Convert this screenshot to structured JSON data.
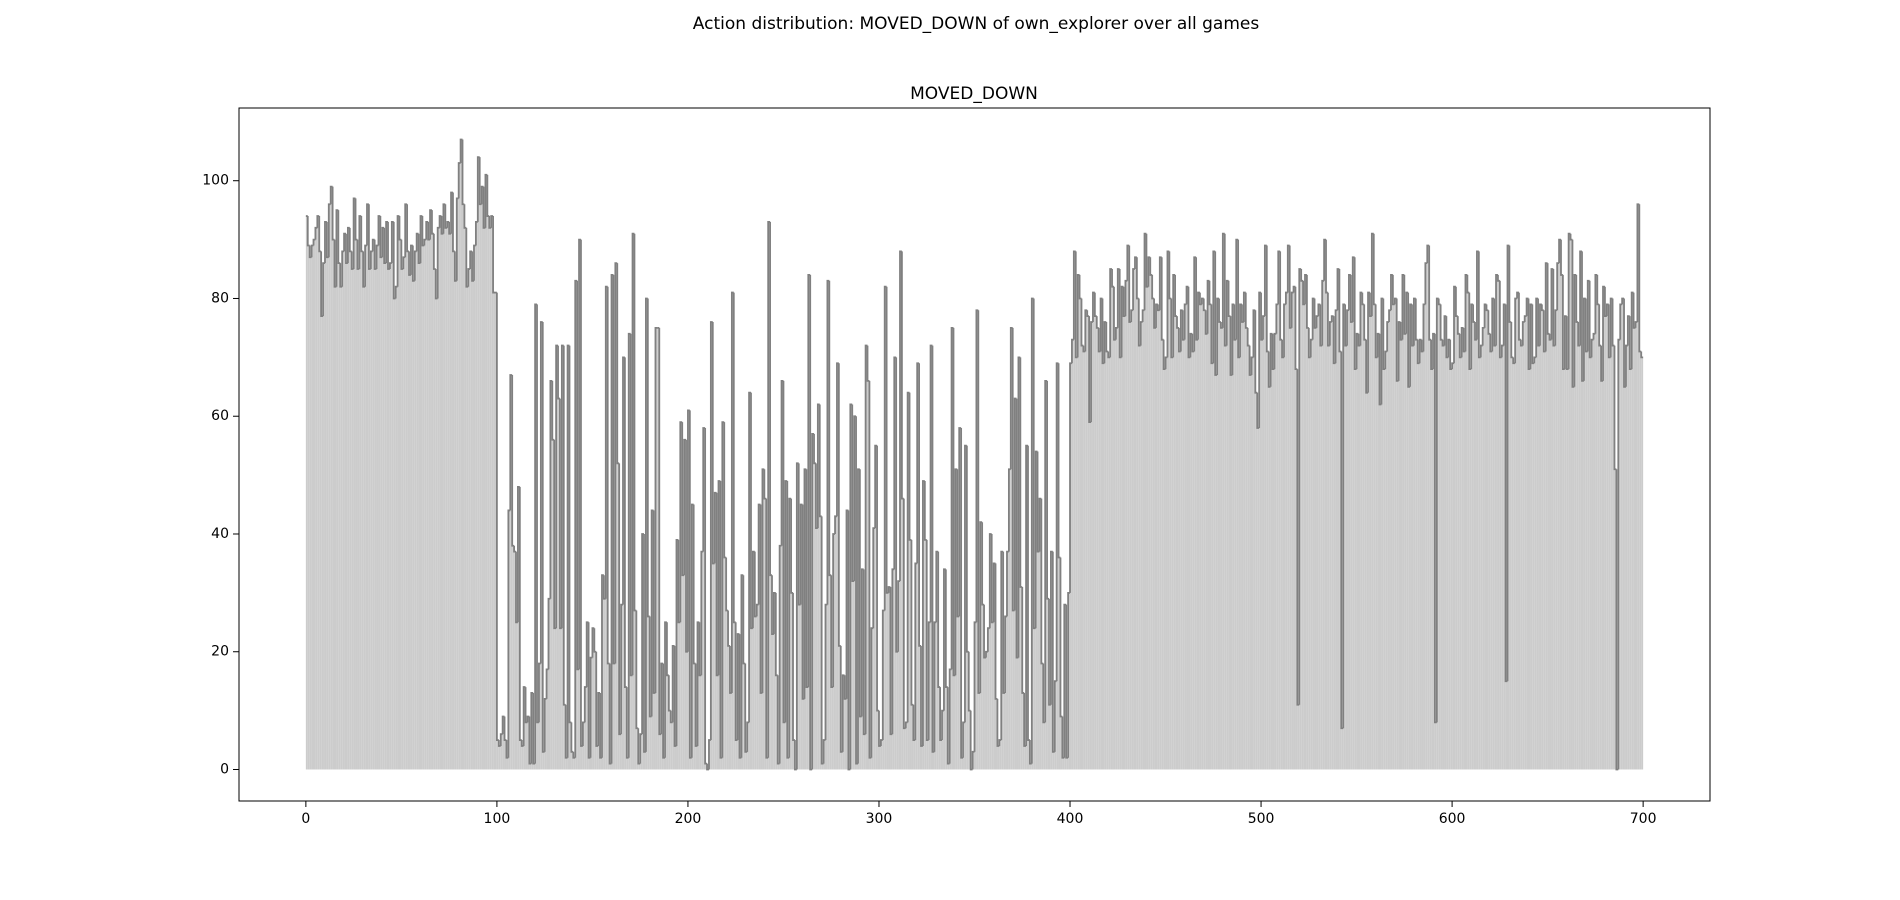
{
  "chart_data": {
    "type": "histogram",
    "title": "Action distribution: MOVED_DOWN of own_explorer over all games",
    "subtitle": "MOVED_DOWN",
    "color": "#cccccc",
    "edgecolor": "#808080",
    "xlim": [
      -35,
      735
    ],
    "ylim": [
      -5.35,
      112.35
    ],
    "xticks": [
      0,
      100,
      200,
      300,
      400,
      500,
      600,
      700
    ],
    "yticks": [
      0,
      20,
      40,
      60,
      80,
      100
    ],
    "bins": [
      0,
      1,
      2,
      3,
      4,
      5,
      6,
      7,
      8,
      9,
      10,
      11,
      12,
      13,
      14,
      15,
      16,
      17,
      18,
      19,
      20,
      21,
      22,
      23,
      24,
      25,
      26,
      27,
      28,
      29,
      30,
      31,
      32,
      33,
      34,
      35,
      36,
      37,
      38,
      39,
      40,
      41,
      42,
      43,
      44,
      45,
      46,
      47,
      48,
      49,
      50,
      51,
      52,
      53,
      54,
      55,
      56,
      57,
      58,
      59,
      60,
      61,
      62,
      63,
      64,
      65,
      66,
      67,
      68,
      69,
      70,
      71,
      72,
      73,
      74,
      75,
      76,
      77,
      78,
      79,
      80,
      81,
      82,
      83,
      84,
      85,
      86,
      87,
      88,
      89,
      90,
      91,
      92,
      93,
      94,
      95,
      96,
      97,
      98,
      99,
      100,
      101,
      102,
      103,
      104,
      105,
      106,
      107,
      108,
      109,
      110,
      111,
      112,
      113,
      114,
      115,
      116,
      117,
      118,
      119,
      120,
      121,
      122,
      123,
      124,
      125,
      126,
      127,
      128,
      129,
      130,
      131,
      132,
      133,
      134,
      135,
      136,
      137,
      138,
      139,
      140,
      141,
      142,
      143,
      144,
      145,
      146,
      147,
      148,
      149,
      150,
      151,
      152,
      153,
      154,
      155,
      156,
      157,
      158,
      159,
      160,
      161,
      162,
      163,
      164,
      165,
      166,
      167,
      168,
      169,
      170,
      171,
      172,
      173,
      174,
      175,
      176,
      177,
      178,
      179,
      180,
      181,
      182,
      183,
      184,
      185,
      186,
      187,
      188,
      189,
      190,
      191,
      192,
      193,
      194,
      195,
      196,
      197,
      198,
      199,
      200,
      201,
      202,
      203,
      204,
      205,
      206,
      207,
      208,
      209,
      210,
      211,
      212,
      213,
      214,
      215,
      216,
      217,
      218,
      219,
      220,
      221,
      222,
      223,
      224,
      225,
      226,
      227,
      228,
      229,
      230,
      231,
      232,
      233,
      234,
      235,
      236,
      237,
      238,
      239,
      240,
      241,
      242,
      243,
      244,
      245,
      246,
      247,
      248,
      249,
      250,
      251,
      252,
      253,
      254,
      255,
      256,
      257,
      258,
      259,
      260,
      261,
      262,
      263,
      264,
      265,
      266,
      267,
      268,
      269,
      270,
      271,
      272,
      273,
      274,
      275,
      276,
      277,
      278,
      279,
      280,
      281,
      282,
      283,
      284,
      285,
      286,
      287,
      288,
      289,
      290,
      291,
      292,
      293,
      294,
      295,
      296,
      297,
      298,
      299,
      300,
      301,
      302,
      303,
      304,
      305,
      306,
      307,
      308,
      309,
      310,
      311,
      312,
      313,
      314,
      315,
      316,
      317,
      318,
      319,
      320,
      321,
      322,
      323,
      324,
      325,
      326,
      327,
      328,
      329,
      330,
      331,
      332,
      333,
      334,
      335,
      336,
      337,
      338,
      339,
      340,
      341,
      342,
      343,
      344,
      345,
      346,
      347,
      348,
      349,
      350,
      351,
      352,
      353,
      354,
      355,
      356,
      357,
      358,
      359,
      360,
      361,
      362,
      363,
      364,
      365,
      366,
      367,
      368,
      369,
      370,
      371,
      372,
      373,
      374,
      375,
      376,
      377,
      378,
      379,
      380,
      381,
      382,
      383,
      384,
      385,
      386,
      387,
      388,
      389,
      390,
      391,
      392,
      393,
      394,
      395,
      396,
      397,
      398,
      399,
      400,
      401,
      402,
      403,
      404,
      405,
      406,
      407,
      408,
      409,
      410,
      411,
      412,
      413,
      414,
      415,
      416,
      417,
      418,
      419,
      420,
      421,
      422,
      423,
      424,
      425,
      426,
      427,
      428,
      429,
      430,
      431,
      432,
      433,
      434,
      435,
      436,
      437,
      438,
      439,
      440,
      441,
      442,
      443,
      444,
      445,
      446,
      447,
      448,
      449,
      450,
      451,
      452,
      453,
      454,
      455,
      456,
      457,
      458,
      459,
      460,
      461,
      462,
      463,
      464,
      465,
      466,
      467,
      468,
      469,
      470,
      471,
      472,
      473,
      474,
      475,
      476,
      477,
      478,
      479,
      480,
      481,
      482,
      483,
      484,
      485,
      486,
      487,
      488,
      489,
      490,
      491,
      492,
      493,
      494,
      495,
      496,
      497,
      498,
      499,
      500,
      501,
      502,
      503,
      504,
      505,
      506,
      507,
      508,
      509,
      510,
      511,
      512,
      513,
      514,
      515,
      516,
      517,
      518,
      519,
      520,
      521,
      522,
      523,
      524,
      525,
      526,
      527,
      528,
      529,
      530,
      531,
      532,
      533,
      534,
      535,
      536,
      537,
      538,
      539,
      540,
      541,
      542,
      543,
      544,
      545,
      546,
      547,
      548,
      549,
      550,
      551,
      552,
      553,
      554,
      555,
      556,
      557,
      558,
      559,
      560,
      561,
      562,
      563,
      564,
      565,
      566,
      567,
      568,
      569,
      570,
      571,
      572,
      573,
      574,
      575,
      576,
      577,
      578,
      579,
      580,
      581,
      582,
      583,
      584,
      585,
      586,
      587,
      588,
      589,
      590,
      591,
      592,
      593,
      594,
      595,
      596,
      597,
      598,
      599,
      600,
      601,
      602,
      603,
      604,
      605,
      606,
      607,
      608,
      609,
      610,
      611,
      612,
      613,
      614,
      615,
      616,
      617,
      618,
      619,
      620,
      621,
      622,
      623,
      624,
      625,
      626,
      627,
      628,
      629,
      630,
      631,
      632,
      633,
      634,
      635,
      636,
      637,
      638,
      639,
      640,
      641,
      642,
      643,
      644,
      645,
      646,
      647,
      648,
      649,
      650,
      651,
      652,
      653,
      654,
      655,
      656,
      657,
      658,
      659,
      660,
      661,
      662,
      663,
      664,
      665,
      666,
      667,
      668,
      669,
      670,
      671,
      672,
      673,
      674,
      675,
      676,
      677,
      678,
      679,
      680,
      681,
      682,
      683,
      684,
      685,
      686,
      687,
      688,
      689,
      690,
      691,
      692,
      693,
      694,
      695,
      696,
      697,
      698,
      699,
      700
    ],
    "values": [
      94,
      89,
      87,
      89,
      90,
      92,
      94,
      88,
      77,
      86,
      93,
      87,
      96,
      99,
      90,
      82,
      95,
      86,
      82,
      88,
      91,
      86,
      92,
      88,
      85,
      97,
      90,
      85,
      94,
      88,
      82,
      89,
      96,
      85,
      88,
      90,
      85,
      89,
      94,
      87,
      92,
      86,
      93,
      85,
      86,
      93,
      80,
      82,
      94,
      90,
      85,
      87,
      96,
      88,
      84,
      89,
      83,
      88,
      91,
      86,
      94,
      89,
      90,
      93,
      90,
      95,
      91,
      85,
      80,
      92,
      94,
      91,
      96,
      92,
      93,
      91,
      98,
      88,
      83,
      97,
      103,
      107,
      96,
      92,
      82,
      85,
      88,
      83,
      89,
      93,
      104,
      96,
      99,
      92,
      101,
      94,
      92,
      94,
      81,
      81,
      5,
      4,
      6,
      9,
      5,
      2,
      44,
      67,
      38,
      37,
      25,
      48,
      5,
      4,
      14,
      8,
      9,
      1,
      13,
      1,
      79,
      8,
      18,
      76,
      3,
      12,
      17,
      29,
      66,
      56,
      24,
      72,
      63,
      24,
      72,
      11,
      2,
      72,
      8,
      3,
      2,
      83,
      17,
      90,
      4,
      8,
      14,
      25,
      2,
      19,
      24,
      20,
      4,
      13,
      2,
      33,
      29,
      82,
      18,
      1,
      84,
      18,
      86,
      52,
      6,
      28,
      70,
      14,
      2,
      74,
      16,
      91,
      27,
      7,
      1,
      6,
      40,
      3,
      80,
      26,
      9,
      44,
      13,
      75,
      75,
      6,
      18,
      2,
      25,
      16,
      10,
      8,
      21,
      4,
      39,
      25,
      59,
      33,
      56,
      20,
      61,
      2,
      45,
      18,
      4,
      25,
      16,
      37,
      58,
      1,
      0,
      5,
      76,
      35,
      47,
      16,
      49,
      2,
      59,
      36,
      27,
      21,
      13,
      81,
      25,
      5,
      23,
      2,
      33,
      18,
      3,
      8,
      64,
      24,
      37,
      26,
      28,
      45,
      13,
      51,
      46,
      2,
      93,
      33,
      23,
      30,
      16,
      1,
      38,
      66,
      8,
      49,
      2,
      46,
      30,
      5,
      0,
      52,
      28,
      45,
      12,
      51,
      14,
      84,
      0,
      57,
      52,
      41,
      62,
      43,
      1,
      5,
      28,
      83,
      33,
      14,
      40,
      43,
      69,
      21,
      3,
      16,
      12,
      44,
      0,
      62,
      32,
      60,
      1,
      51,
      9,
      34,
      6,
      72,
      66,
      2,
      24,
      41,
      55,
      10,
      4,
      5,
      27,
      82,
      30,
      31,
      6,
      34,
      70,
      20,
      32,
      88,
      46,
      7,
      8,
      64,
      39,
      11,
      5,
      35,
      69,
      21,
      4,
      49,
      39,
      5,
      25,
      72,
      3,
      25,
      37,
      14,
      5,
      10,
      34,
      14,
      1,
      17,
      75,
      16,
      51,
      26,
      58,
      2,
      8,
      55,
      20,
      10,
      0,
      3,
      25,
      78,
      13,
      42,
      28,
      19,
      20,
      24,
      40,
      25,
      35,
      12,
      4,
      5,
      37,
      13,
      26,
      37,
      51,
      75,
      27,
      63,
      19,
      70,
      31,
      13,
      4,
      55,
      5,
      1,
      80,
      24,
      54,
      37,
      46,
      18,
      8,
      66,
      29,
      11,
      37,
      3,
      15,
      69,
      36,
      9,
      2,
      28,
      2,
      30,
      69,
      73,
      88,
      70,
      84,
      80,
      72,
      71,
      78,
      77,
      59,
      76,
      81,
      77,
      75,
      71,
      80,
      69,
      76,
      71,
      70,
      85,
      82,
      73,
      75,
      85,
      70,
      82,
      77,
      83,
      89,
      76,
      78,
      85,
      87,
      80,
      72,
      76,
      78,
      91,
      82,
      87,
      84,
      80,
      75,
      79,
      78,
      87,
      73,
      68,
      70,
      88,
      80,
      70,
      84,
      77,
      75,
      71,
      78,
      73,
      79,
      82,
      70,
      74,
      71,
      87,
      73,
      81,
      79,
      80,
      78,
      74,
      83,
      79,
      69,
      88,
      67,
      80,
      76,
      75,
      91,
      72,
      83,
      77,
      67,
      79,
      73,
      90,
      70,
      79,
      76,
      81,
      75,
      72,
      67,
      70,
      78,
      64,
      58,
      81,
      73,
      77,
      89,
      71,
      65,
      74,
      68,
      74,
      79,
      88,
      73,
      70,
      79,
      81,
      89,
      75,
      81,
      82,
      68,
      11,
      85,
      83,
      79,
      84,
      75,
      70,
      73,
      80,
      75,
      77,
      79,
      72,
      83,
      90,
      81,
      72,
      76,
      77,
      69,
      78,
      85,
      71,
      7,
      79,
      72,
      78,
      84,
      76,
      87,
      68,
      74,
      72,
      81,
      79,
      73,
      64,
      81,
      77,
      91,
      79,
      70,
      74,
      62,
      80,
      68,
      71,
      76,
      78,
      84,
      79,
      80,
      66,
      76,
      73,
      84,
      74,
      81,
      65,
      79,
      72,
      80,
      73,
      69,
      73,
      71,
      79,
      86,
      89,
      73,
      68,
      74,
      8,
      80,
      79,
      73,
      72,
      77,
      70,
      73,
      68,
      69,
      82,
      77,
      74,
      70,
      75,
      71,
      84,
      81,
      68,
      79,
      76,
      73,
      88,
      70,
      72,
      75,
      79,
      78,
      74,
      71,
      80,
      72,
      84,
      83,
      70,
      72,
      79,
      15,
      89,
      76,
      70,
      69,
      80,
      81,
      73,
      72,
      76,
      77,
      80,
      68,
      79,
      69,
      70,
      80,
      72,
      79,
      78,
      71,
      86,
      74,
      73,
      85,
      72,
      78,
      86,
      90,
      84,
      68,
      77,
      68,
      91,
      90,
      65,
      84,
      76,
      72,
      88,
      66,
      80,
      71,
      83,
      70,
      73,
      74,
      84,
      79,
      72,
      66,
      82,
      77,
      79,
      70,
      80,
      72,
      51,
      0,
      73,
      79,
      80,
      65,
      72,
      77,
      68,
      81,
      75,
      76,
      96,
      71,
      70
    ]
  }
}
